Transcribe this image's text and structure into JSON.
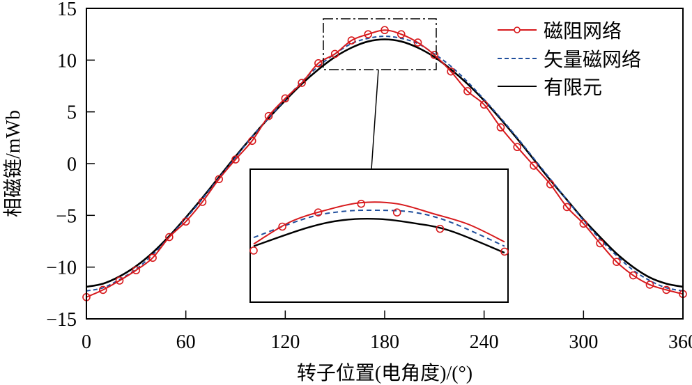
{
  "chart_data": {
    "type": "line",
    "title": "",
    "xlabel": "转子位置(电角度)/(°)",
    "ylabel": "相磁链/mWb",
    "xlim": [
      0,
      360
    ],
    "ylim": [
      -15,
      15
    ],
    "xticks": [
      0,
      60,
      120,
      180,
      240,
      300,
      360
    ],
    "yticks": [
      -15,
      -10,
      -5,
      0,
      5,
      10,
      15
    ],
    "grid": false,
    "legend_position": "upper right",
    "x": [
      0,
      10,
      20,
      30,
      40,
      50,
      60,
      70,
      80,
      90,
      100,
      110,
      120,
      130,
      140,
      150,
      160,
      170,
      180,
      190,
      200,
      210,
      220,
      230,
      240,
      250,
      260,
      270,
      280,
      290,
      300,
      310,
      320,
      330,
      340,
      350,
      360
    ],
    "series": [
      {
        "name": "磁阻网络",
        "color": "#d7191c",
        "style": "solid-with-circle-markers",
        "values": [
          -12.9,
          -12.2,
          -11.3,
          -10.3,
          -9.1,
          -7.1,
          -5.6,
          -3.7,
          -1.5,
          0.4,
          2.2,
          4.6,
          6.3,
          7.8,
          9.7,
          10.6,
          11.9,
          12.5,
          12.9,
          12.5,
          11.7,
          10.5,
          8.9,
          7.0,
          5.7,
          3.5,
          1.6,
          -0.2,
          -2.0,
          -4.2,
          -5.8,
          -7.7,
          -9.5,
          -10.8,
          -11.7,
          -12.2,
          -12.6
        ]
      },
      {
        "name": "矢量磁网络",
        "color": "#1f4e9c",
        "style": "dashed",
        "values": [
          -12.3,
          -12.0,
          -11.2,
          -10.2,
          -8.8,
          -7.1,
          -5.3,
          -3.4,
          -1.4,
          0.6,
          2.6,
          4.4,
          6.2,
          7.9,
          9.4,
          10.6,
          11.6,
          12.1,
          12.3,
          12.1,
          11.6,
          10.6,
          9.4,
          7.9,
          6.2,
          4.4,
          2.5,
          0.5,
          -1.5,
          -3.5,
          -5.5,
          -7.3,
          -8.9,
          -10.3,
          -11.3,
          -12.0,
          -12.3
        ]
      },
      {
        "name": "有限元",
        "color": "#000000",
        "style": "solid",
        "values": [
          -11.9,
          -11.6,
          -10.9,
          -9.9,
          -8.6,
          -7.0,
          -5.2,
          -3.3,
          -1.3,
          0.7,
          2.6,
          4.4,
          6.1,
          7.7,
          9.1,
          10.3,
          11.2,
          11.8,
          12.0,
          11.8,
          11.2,
          10.3,
          9.1,
          7.7,
          6.1,
          4.3,
          2.4,
          0.4,
          -1.6,
          -3.5,
          -5.4,
          -7.1,
          -8.7,
          -10.0,
          -11.0,
          -11.6,
          -11.9
        ]
      }
    ],
    "annotations": {
      "zoom_region": {
        "x_range": [
          145,
          215
        ],
        "y_range": [
          9,
          14
        ],
        "border": "dash-dot"
      },
      "inset": {
        "x_range": [
          145,
          215
        ],
        "red_marker_x": [
          145,
          155,
          165,
          175,
          185,
          195,
          205,
          215
        ]
      }
    }
  },
  "legend": {
    "items": [
      {
        "label": "磁阻网络",
        "color": "#d7191c"
      },
      {
        "label": "矢量磁网络",
        "color": "#1f4e9c"
      },
      {
        "label": "有限元",
        "color": "#000000"
      }
    ]
  },
  "axes": {
    "x_tick_labels": [
      "0",
      "60",
      "120",
      "180",
      "240",
      "300",
      "360"
    ],
    "y_tick_labels": [
      "15",
      "10",
      "5",
      "0",
      "−5",
      "−10",
      "−15"
    ],
    "xlabel": "转子位置(电角度)/(°)",
    "ylabel": "相磁链/mWb"
  }
}
